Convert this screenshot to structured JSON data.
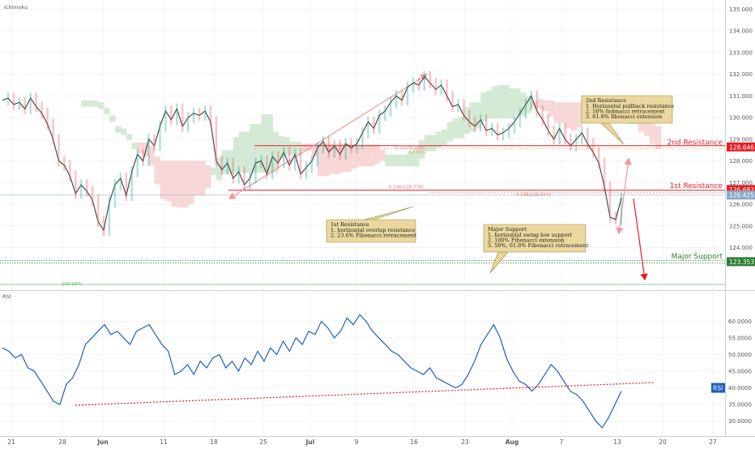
{
  "indicator_label": "Ichimoku",
  "rsi_label": "RSI",
  "chart_data": [
    {
      "type": "line",
      "panel": "price",
      "series": [
        {
          "values": [
            130.8,
            130.9,
            130.6,
            130.7,
            130.4,
            130.9,
            130.5,
            130.2,
            129.7,
            129.0,
            128.0,
            127.8,
            127.3,
            126.5,
            126.9,
            126.6,
            126.2,
            125.2,
            124.8,
            126.1,
            126.9,
            127.2,
            126.4,
            127.5,
            128.3,
            128.0,
            129.0,
            128.7,
            129.6,
            130.3,
            129.9,
            130.4,
            129.6,
            130.0,
            130.2,
            130.1,
            130.3,
            129.8,
            128.0,
            127.6,
            127.9,
            127.2,
            127.5,
            126.9,
            127.2,
            127.9,
            128.0,
            127.4,
            128.2,
            127.9,
            128.4,
            127.8,
            128.3,
            127.4,
            127.7,
            128.0,
            128.6,
            128.9,
            128.4,
            128.7,
            128.3,
            128.8,
            128.6,
            128.8,
            129.3,
            129.8,
            129.5,
            130.1,
            130.3,
            130.7,
            131.0,
            130.8,
            131.4,
            131.6,
            131.5,
            131.9,
            131.6,
            131.3,
            131.5,
            131.0,
            130.5,
            130.6,
            130.1,
            129.8,
            129.6,
            129.9,
            129.4,
            129.5,
            129.2,
            129.3,
            129.5,
            129.8,
            130.2,
            130.6,
            131.0,
            130.3,
            129.9,
            129.4,
            129.0,
            129.5,
            129.0,
            128.7,
            129.0,
            129.3,
            128.8,
            128.4,
            127.9,
            126.8,
            125.4,
            125.3,
            126.3
          ]
        }
      ],
      "ylim": [
        122.3,
        135.2
      ],
      "y_ticks": [
        "135.000",
        "134.000",
        "133.000",
        "132.000",
        "131.000",
        "130.000",
        "129.000",
        "128.000",
        "127.000",
        "126.000",
        "125.000",
        "124.000"
      ],
      "x_ticks": [
        "21",
        "28",
        "Jun",
        "11",
        "18",
        "25",
        "Jul",
        "9",
        "16",
        "23",
        "Aug",
        "7",
        "13",
        "20",
        "27"
      ],
      "price_tags": [
        {
          "label": "128.646",
          "value": 128.646,
          "color": "#e31e24"
        },
        {
          "label": "126.682",
          "value": 126.682,
          "color": "#e31e24"
        },
        {
          "label": "126.425",
          "value": 126.425,
          "color": "#8aa8c4"
        },
        {
          "label": "123.353",
          "value": 123.353,
          "color": "#2e7d32"
        }
      ],
      "levels": [
        {
          "name": "2nd Resistance",
          "value": 128.646,
          "color": "#e31e24"
        },
        {
          "name": "1st Resistance",
          "value": 126.682,
          "color": "#e31e24"
        },
        {
          "name": "Major Support",
          "value": 123.353,
          "color": "#2e7d32"
        }
      ],
      "fib_labels": [
        "0.5(128.588)",
        "61.80%",
        "0.236(126.778)",
        "0.236(126.547)",
        "100.00%"
      ],
      "callouts": [
        {
          "title": "2nd Resistance",
          "lines": [
            "1. Horizontal pullback resistance",
            "2. 50% fiobnacci retracement",
            "3. 61.8% fibonacci extension"
          ]
        },
        {
          "title": "1st Resistance",
          "lines": [
            "1. horizontal overlap resistance",
            "2. 23.6% Fibonacci retracement"
          ]
        },
        {
          "title": "Major Support",
          "lines": [
            "1. horizontal swing low support",
            "2. 100% Fibonacci extension",
            "3. 50%, 61.8% Fibonacci retracement"
          ]
        }
      ],
      "colors": {
        "price": "#3b3b3b",
        "cloud_bull": "#cfe8d2",
        "cloud_bear": "#f6d3d3"
      }
    },
    {
      "type": "line",
      "panel": "rsi",
      "series": [
        {
          "values": [
            52,
            51,
            49,
            50,
            46,
            45,
            42,
            39,
            36,
            35,
            41,
            43,
            47,
            53,
            55,
            57,
            59,
            56,
            57,
            55,
            53,
            57,
            58,
            59,
            56,
            53,
            51,
            44,
            45,
            47,
            44,
            48,
            46,
            49,
            50,
            46,
            48,
            45,
            49,
            47,
            51,
            48,
            52,
            50,
            54,
            51,
            55,
            53,
            57,
            56,
            60,
            58,
            55,
            57,
            61,
            59,
            62,
            60,
            57,
            55,
            53,
            51,
            50,
            48,
            46,
            45,
            44,
            46,
            43,
            42,
            41,
            40,
            41,
            44,
            48,
            53,
            56,
            59,
            55,
            49,
            45,
            42,
            41,
            39,
            41,
            44,
            47,
            45,
            42,
            39,
            38,
            36,
            33,
            30,
            28,
            31,
            35,
            39
          ]
        }
      ],
      "ylim": [
        26.5,
        63.5
      ],
      "y_ticks": [
        "60.0000",
        "55.0000",
        "50.0000",
        "45.0000",
        "40.0000",
        "35.0000",
        "30.0000"
      ],
      "current_tag": {
        "label": "RSI",
        "value": 40.0
      }
    }
  ]
}
